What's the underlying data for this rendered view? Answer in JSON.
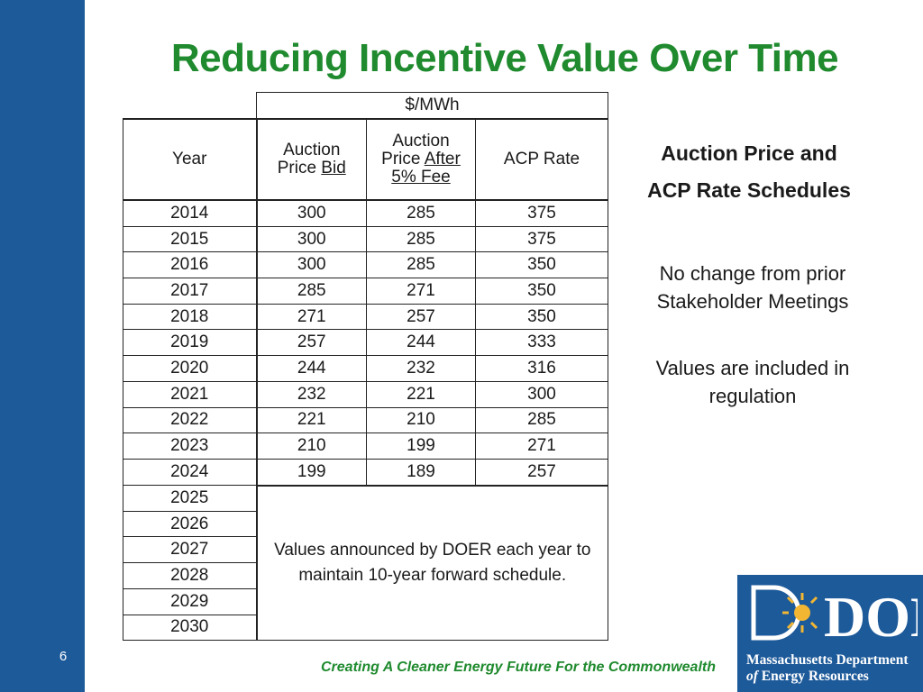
{
  "slide": {
    "title": "Reducing Incentive Value Over Time",
    "page_number": "6",
    "footer": "Creating A Cleaner Energy Future For the Commonwealth"
  },
  "table": {
    "unit": "$/MWh",
    "headers": {
      "year": "Year",
      "bid_line1": "Auction",
      "bid_line2_a": "Price ",
      "bid_line2_b": "Bid",
      "after_line1": "Auction",
      "after_line2_a": "Price ",
      "after_line2_b": "After",
      "after_line3": "5% Fee",
      "acp": "ACP Rate"
    },
    "rows": [
      {
        "year": "2014",
        "bid": "300",
        "after": "285",
        "acp": "375"
      },
      {
        "year": "2015",
        "bid": "300",
        "after": "285",
        "acp": "375"
      },
      {
        "year": "2016",
        "bid": "300",
        "after": "285",
        "acp": "350"
      },
      {
        "year": "2017",
        "bid": "285",
        "after": "271",
        "acp": "350"
      },
      {
        "year": "2018",
        "bid": "271",
        "after": "257",
        "acp": "350"
      },
      {
        "year": "2019",
        "bid": "257",
        "after": "244",
        "acp": "333"
      },
      {
        "year": "2020",
        "bid": "244",
        "after": "232",
        "acp": "316"
      },
      {
        "year": "2021",
        "bid": "232",
        "after": "221",
        "acp": "300"
      },
      {
        "year": "2022",
        "bid": "221",
        "after": "210",
        "acp": "285"
      },
      {
        "year": "2023",
        "bid": "210",
        "after": "199",
        "acp": "271"
      },
      {
        "year": "2024",
        "bid": "199",
        "after": "189",
        "acp": "257"
      }
    ],
    "future_years": [
      "2025",
      "2026",
      "2027",
      "2028",
      "2029",
      "2030"
    ],
    "future_note_line1": "Values announced by DOER each year to",
    "future_note_line2": "maintain 10-year forward schedule."
  },
  "side": {
    "heading_line1": "Auction Price and",
    "heading_line2": "ACP Rate Schedules",
    "note1_line1": "No change from prior",
    "note1_line2": "Stakeholder Meetings",
    "note2_line1": "Values are included in",
    "note2_line2": "regulation"
  },
  "logo": {
    "wordmark": "DOER",
    "line1": "Massachusetts Department",
    "line2_a": "of",
    "line2_b": " Energy Resources"
  },
  "colors": {
    "brand_blue": "#1d5a9a",
    "title_green": "#1f8a2e"
  }
}
